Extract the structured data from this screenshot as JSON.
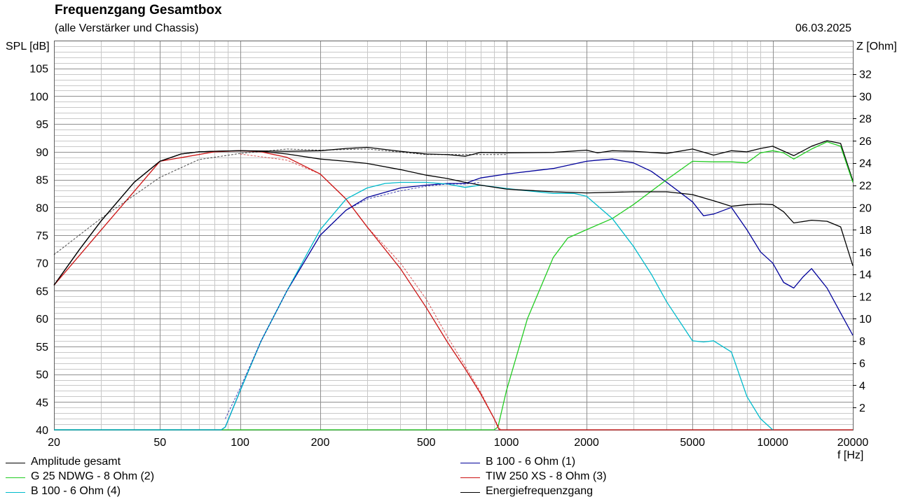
{
  "colors": {
    "black": "#000000",
    "blue": "#00009a",
    "green": "#22cc22",
    "red": "#cc1111",
    "cyan": "#00bbcc",
    "grid_major": "#909090",
    "grid_minor": "#c8c8c8"
  },
  "chart_data": {
    "type": "line",
    "title": "Frequenzgang Gesamtbox",
    "subtitle": "(alle Verstärker und Chassis)",
    "date": "06.03.2025",
    "ylabel": "SPL [dB]",
    "y2label": "Z [Ohm]",
    "xlabel": "f [Hz]",
    "xscale": "log",
    "xlim": [
      20,
      20000
    ],
    "ylim": [
      40,
      110
    ],
    "y2lim": [
      0,
      35
    ],
    "x_ticks": [
      20,
      50,
      100,
      200,
      500,
      1000,
      2000,
      5000,
      10000,
      20000
    ],
    "x_tick_labels": [
      "20",
      "50",
      "100",
      "200",
      "500",
      "1000",
      "2000",
      "5000",
      "10000",
      "20000"
    ],
    "y_ticks": [
      40,
      45,
      50,
      55,
      60,
      65,
      70,
      75,
      80,
      85,
      90,
      95,
      100,
      105
    ],
    "y_tick_labels": [
      "40",
      "45",
      "50",
      "55",
      "60",
      "65",
      "70",
      "75",
      "80",
      "85",
      "90",
      "95",
      "100",
      "105"
    ],
    "y2_ticks": [
      2,
      4,
      6,
      8,
      10,
      12,
      14,
      16,
      18,
      20,
      22,
      24,
      26,
      28,
      30,
      32
    ],
    "y2_tick_labels": [
      "2",
      "4",
      "6",
      "8",
      "10",
      "12",
      "14",
      "16",
      "18",
      "20",
      "22",
      "24",
      "26",
      "28",
      "30",
      "32"
    ],
    "grid": true,
    "legend_position": "bottom",
    "series": [
      {
        "name": "Amplitude gesamt",
        "color": "black",
        "axis": "left",
        "x": [
          20,
          25,
          30,
          40,
          50,
          60,
          70,
          80,
          100,
          150,
          200,
          250,
          300,
          400,
          500,
          600,
          700,
          800,
          1000,
          1500,
          2000,
          2200,
          2500,
          3000,
          4000,
          5000,
          6000,
          7000,
          8000,
          9000,
          10000,
          12000,
          14000,
          16000,
          18000,
          20000
        ],
        "y": [
          66,
          72.5,
          77.5,
          84.5,
          88.3,
          89.6,
          90,
          90.1,
          90.2,
          90.1,
          90.2,
          90.6,
          90.8,
          90.1,
          89.6,
          89.5,
          89.2,
          89.9,
          89.8,
          89.9,
          90.3,
          89.8,
          90.2,
          90.1,
          89.7,
          90.5,
          89.4,
          90.2,
          90,
          90.6,
          91,
          89.3,
          91,
          92,
          91.5,
          84.8
        ]
      },
      {
        "name": "B 100 - 6 Ohm (1)",
        "color": "blue",
        "axis": "left",
        "x": [
          20,
          50,
          85,
          88,
          100,
          120,
          150,
          200,
          250,
          300,
          400,
          500,
          600,
          700,
          800,
          1000,
          1500,
          2000,
          2200,
          2500,
          3000,
          3500,
          4000,
          5000,
          5500,
          6000,
          7000,
          8000,
          9000,
          10000,
          11000,
          12000,
          13000,
          14000,
          16000,
          18000,
          20000
        ],
        "y": [
          40,
          40,
          40,
          40.5,
          47,
          56,
          65,
          75,
          79.5,
          81.8,
          83.5,
          84,
          84.3,
          84.3,
          85.3,
          86,
          87,
          88.3,
          88.5,
          88.7,
          88,
          86.5,
          84.5,
          81,
          78.5,
          78.8,
          80,
          76,
          72,
          70,
          66.5,
          65.5,
          67.5,
          69,
          65.5,
          61,
          57
        ]
      },
      {
        "name": "G 25 NDWG - 8 Ohm (2)",
        "color": "green",
        "axis": "left",
        "x": [
          20,
          900,
          930,
          1000,
          1200,
          1500,
          1700,
          2000,
          2500,
          3000,
          4000,
          5000,
          6000,
          7000,
          8000,
          9000,
          10000,
          11000,
          12000,
          14000,
          16000,
          18000,
          20000
        ],
        "y": [
          40,
          40,
          40.5,
          47,
          60,
          71,
          74.5,
          76,
          78,
          80.5,
          85,
          88.3,
          88.2,
          88.2,
          88,
          89.8,
          90.2,
          89.8,
          88.7,
          90.5,
          91.8,
          91,
          84.5
        ]
      },
      {
        "name": "TIW 250 XS - 8 Ohm (3)",
        "color": "red",
        "axis": "left",
        "x": [
          20,
          50,
          80,
          100,
          120,
          150,
          200,
          250,
          300,
          400,
          500,
          600,
          700,
          800,
          900,
          940,
          1000,
          2000,
          5000,
          10000,
          20000
        ],
        "y": [
          66,
          88.3,
          90,
          90.2,
          90,
          89,
          86,
          81.5,
          76.5,
          69,
          62,
          55.8,
          51,
          46.5,
          42,
          40,
          40,
          40,
          40,
          40,
          40
        ]
      },
      {
        "name": "B 100 - 6 Ohm (4)",
        "color": "cyan",
        "axis": "left",
        "x": [
          20,
          50,
          85,
          88,
          100,
          120,
          150,
          200,
          250,
          300,
          350,
          400,
          500,
          600,
          700,
          800,
          1000,
          1500,
          1800,
          2000,
          2500,
          3000,
          3500,
          4000,
          5000,
          5500,
          6000,
          7000,
          8000,
          9000,
          10000
        ],
        "y": [
          40,
          40,
          40,
          40.5,
          47,
          56,
          65,
          76,
          81.5,
          83.5,
          84.3,
          84.5,
          84.5,
          84.2,
          83.6,
          84,
          83.4,
          82.5,
          82.5,
          82,
          78,
          73,
          68,
          63,
          56,
          55.8,
          56,
          54,
          46,
          42,
          40
        ]
      },
      {
        "name": "Energiefrequenzgang",
        "color": "black",
        "axis": "left",
        "x": [
          20,
          25,
          30,
          40,
          50,
          60,
          70,
          80,
          100,
          120,
          150,
          200,
          250,
          300,
          400,
          500,
          600,
          700,
          800,
          1000,
          1500,
          2000,
          3000,
          4000,
          5000,
          6000,
          7000,
          8000,
          9000,
          10000,
          11000,
          12000,
          14000,
          16000,
          18000,
          20000
        ],
        "y": [
          66,
          72.5,
          77.5,
          84.5,
          88.3,
          89.6,
          90,
          90.1,
          90.2,
          90.1,
          89.6,
          88.7,
          88.3,
          87.9,
          86.8,
          85.8,
          85.2,
          84.5,
          84,
          83.3,
          82.8,
          82.6,
          82.8,
          82.8,
          82.3,
          81.2,
          80.2,
          80.5,
          80.6,
          80.5,
          79.2,
          77.2,
          77.7,
          77.5,
          76.5,
          69.5
        ]
      },
      {
        "name": "",
        "color": "black",
        "dashed": true,
        "axis": "left",
        "x": [
          20,
          30,
          50,
          70,
          100,
          150,
          200,
          300,
          500,
          1000
        ],
        "y": [
          71.5,
          78,
          85.4,
          88.6,
          89.7,
          90.5,
          90.3,
          90.5,
          89.5,
          89.5
        ]
      },
      {
        "name": "",
        "color": "red",
        "dashed": true,
        "axis": "left",
        "x": [
          100,
          150,
          200,
          250,
          300,
          400,
          500,
          600,
          700,
          800,
          900,
          950
        ],
        "y": [
          89.6,
          88.5,
          86,
          81.5,
          76.5,
          70,
          63.5,
          56.8,
          51.5,
          46.8,
          42,
          40
        ]
      },
      {
        "name": "",
        "color": "blue",
        "dashed": true,
        "axis": "left",
        "x": [
          88,
          100,
          120,
          150,
          200,
          250,
          300,
          400,
          500,
          600,
          700,
          800
        ],
        "y": [
          42,
          47.5,
          56,
          65,
          75,
          79.5,
          81.5,
          83,
          83.8,
          84.2,
          84.2,
          84.5
        ]
      }
    ],
    "legend": [
      {
        "label": "Amplitude gesamt",
        "color": "black"
      },
      {
        "label": "B 100 - 6 Ohm (1)",
        "color": "blue"
      },
      {
        "label": "G 25 NDWG - 8 Ohm (2)",
        "color": "green"
      },
      {
        "label": "TIW 250 XS - 8 Ohm (3)",
        "color": "red"
      },
      {
        "label": "B 100 - 6 Ohm (4)",
        "color": "cyan"
      },
      {
        "label": "Energiefrequenzgang",
        "color": "black"
      }
    ]
  }
}
